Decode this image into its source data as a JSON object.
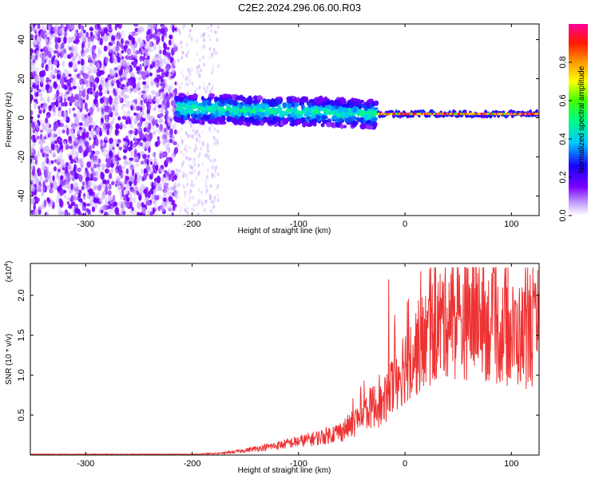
{
  "title": "C2E2.2024.296.06.00.R03",
  "chart_data": [
    {
      "type": "heatmap",
      "xlabel": "Height of straight line (km)",
      "ylabel": "Frequency (Hz)",
      "xlim": [
        -352,
        126
      ],
      "ylim": [
        -50,
        48
      ],
      "xticks": [
        -300,
        -200,
        -100,
        0,
        100
      ],
      "yticks": [
        -40,
        -20,
        0,
        20,
        40
      ],
      "colorbar": {
        "label": "Normalized spectral amplitude",
        "range": [
          0,
          1
        ],
        "ticks": [
          "0.0",
          "0.2",
          "0.4",
          "0.6",
          "0.8"
        ],
        "colors": [
          "#ffffff",
          "#7a00ff",
          "#0000ff",
          "#00ffff",
          "#00ff00",
          "#ffff00",
          "#ff8000",
          "#ff0000",
          "#ff0099"
        ]
      },
      "regions": [
        {
          "x_range": [
            -352,
            -215
          ],
          "freq_range": [
            -50,
            48
          ],
          "amplitude": "low, scattered noise"
        },
        {
          "x_range": [
            -215,
            -175
          ],
          "freq_range": [
            -50,
            48
          ],
          "amplitude": "very low, fading noise"
        },
        {
          "x_range": [
            -215,
            -27
          ],
          "freq_center": [
            5,
            2
          ],
          "freq_halfwidth": 6,
          "amplitude": "0.2-0.5"
        },
        {
          "x_range": [
            -25,
            126
          ],
          "freq_center": 2,
          "freq_halfwidth": 2,
          "amplitude": "0.6-1.0"
        }
      ]
    },
    {
      "type": "line",
      "xlabel": "Height of straight line (km)",
      "ylabel": "SNR (10 * v/v)",
      "multiplier": "(x10",
      "multiplier_exp": "4",
      "xlim": [
        -352,
        126
      ],
      "ylim": [
        0,
        2.4
      ],
      "xticks": [
        -300,
        -200,
        -100,
        0,
        100
      ],
      "yticks": [
        "0.5",
        "1.0",
        "1.5",
        "2.0"
      ],
      "color": "#ee3333",
      "series": [
        {
          "x": [
            -352,
            -300,
            -250,
            -200,
            -175,
            -160,
            -140,
            -120,
            -100,
            -80,
            -60,
            -50,
            -40,
            -30,
            -20,
            -15,
            -10,
            0,
            10,
            20,
            30,
            40,
            50,
            60,
            70,
            80,
            90,
            100,
            110,
            120,
            126
          ],
          "y": [
            0.01,
            0.01,
            0.01,
            0.01,
            0.02,
            0.04,
            0.08,
            0.12,
            0.17,
            0.22,
            0.3,
            0.38,
            0.5,
            0.62,
            0.62,
            0.75,
            0.95,
            1.15,
            1.3,
            1.45,
            1.6,
            1.75,
            1.65,
            1.7,
            1.75,
            1.6,
            1.55,
            1.5,
            1.5,
            1.5,
            1.5
          ]
        }
      ]
    }
  ]
}
